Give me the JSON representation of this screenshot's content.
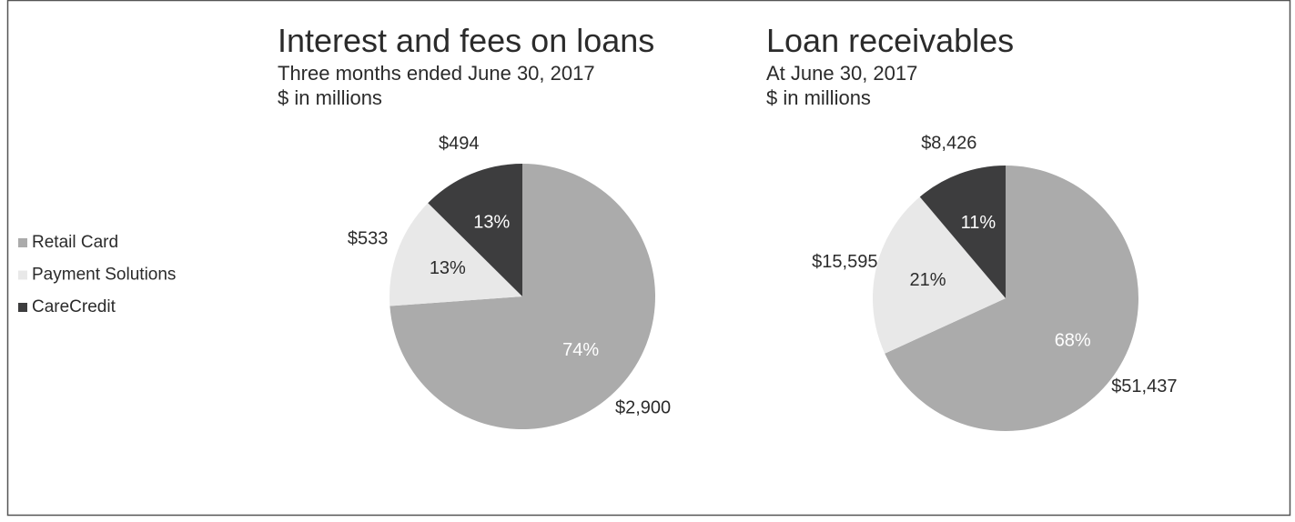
{
  "legend": {
    "categories": [
      "Retail Card",
      "Payment Solutions",
      "CareCredit"
    ],
    "colors": [
      "#ababab",
      "#e8e8e8",
      "#3d3d3e"
    ]
  },
  "chart_data": [
    {
      "type": "pie",
      "title": "Interest and fees on loans",
      "subtitle": [
        "Three months ended June 30, 2017",
        "$ in millions"
      ],
      "values": [
        2900,
        533,
        494
      ],
      "value_labels": [
        "$2,900",
        "$533",
        "$494"
      ],
      "percents": [
        74,
        13,
        13
      ],
      "percent_labels": [
        "74%",
        "13%",
        "13%"
      ]
    },
    {
      "type": "pie",
      "title": "Loan receivables",
      "subtitle": [
        "At June 30, 2017",
        "$ in millions"
      ],
      "values": [
        51437,
        15595,
        8426
      ],
      "value_labels": [
        "$51,437",
        "$15,595",
        "$8,426"
      ],
      "percents": [
        68,
        21,
        11
      ],
      "percent_labels": [
        "68%",
        "21%",
        "11%"
      ]
    }
  ]
}
